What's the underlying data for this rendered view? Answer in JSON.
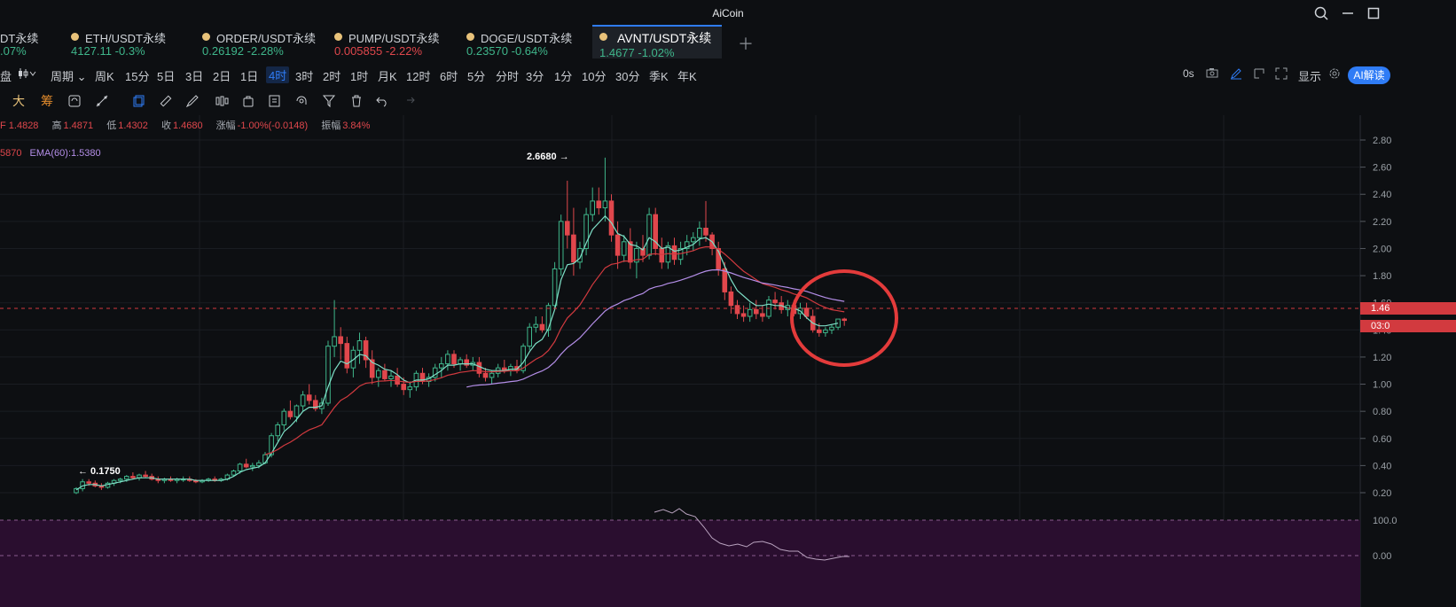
{
  "app": {
    "title": "AiCoin"
  },
  "window_controls": [
    "search-icon",
    "minimize-icon",
    "maximize-icon"
  ],
  "tabs": [
    {
      "symbol": "DT永续",
      "price": "",
      "change": ".07%",
      "dir": "up"
    },
    {
      "symbol": "ETH/USDT永续",
      "price": "4127.11",
      "change": "-0.3%",
      "dir": "up"
    },
    {
      "symbol": "ORDER/USDT永续",
      "price": "0.26192",
      "change": "-2.28%",
      "dir": "up"
    },
    {
      "symbol": "PUMP/USDT永续",
      "price": "0.005855",
      "change": "-2.22%",
      "dir": "down"
    },
    {
      "symbol": "DOGE/USDT永续",
      "price": "0.23570",
      "change": "-0.64%",
      "dir": "up"
    },
    {
      "symbol": "AVNT/USDT永续",
      "price": "1.4677",
      "change": "-1.02%",
      "dir": "up",
      "active": true
    }
  ],
  "toolbar": {
    "left_char": "盘",
    "period_label": "周期",
    "intervals": [
      "周K",
      "15分",
      "5日",
      "3日",
      "2日",
      "1日",
      "4时",
      "3时",
      "2时",
      "1时",
      "月K",
      "12时",
      "6时",
      "5分",
      "分时",
      "3分",
      "1分",
      "10分",
      "30分",
      "季K",
      "年K"
    ],
    "selected_interval": "4时",
    "countdown": "0s",
    "display_label": "显示",
    "ai_label": "AI解读"
  },
  "draw_tools": {
    "char1": "大",
    "char2": "筹"
  },
  "ohlc": {
    "open_label": "开",
    "open": "1.4828",
    "high_label": "高",
    "high": "1.4871",
    "low_label": "低",
    "low": "1.4302",
    "close_label": "收",
    "close": "1.4680",
    "change_label": "涨幅",
    "change": "-1.00%(-0.0148)",
    "amp_label": "振幅",
    "amp": "3.84%"
  },
  "ema": {
    "partial": "5870",
    "label": "EMA(60):1.5380"
  },
  "chart_data": {
    "type": "candlestick",
    "interval": "4时",
    "y_axis_ticks": [
      "2.80",
      "2.60",
      "2.40",
      "2.20",
      "2.00",
      "1.80",
      "1.60",
      "1.40",
      "1.20",
      "1.00",
      "0.80",
      "0.60",
      "0.40",
      "0.20"
    ],
    "ylim": [
      0.1,
      2.9
    ],
    "high_marker": "2.6680",
    "low_marker": "0.1750",
    "current_price": "1.46",
    "countdown_badge": "03:0",
    "indicator_ticks": [
      "100.0",
      "0.00"
    ],
    "candles": [
      [
        0.2,
        0.24,
        0.19,
        0.23
      ],
      [
        0.23,
        0.3,
        0.21,
        0.28
      ],
      [
        0.28,
        0.3,
        0.25,
        0.27
      ],
      [
        0.27,
        0.29,
        0.24,
        0.25
      ],
      [
        0.25,
        0.27,
        0.22,
        0.24
      ],
      [
        0.24,
        0.28,
        0.23,
        0.27
      ],
      [
        0.27,
        0.3,
        0.25,
        0.29
      ],
      [
        0.29,
        0.31,
        0.27,
        0.3
      ],
      [
        0.3,
        0.33,
        0.28,
        0.32
      ],
      [
        0.32,
        0.35,
        0.3,
        0.31
      ],
      [
        0.31,
        0.34,
        0.29,
        0.33
      ],
      [
        0.33,
        0.36,
        0.31,
        0.32
      ],
      [
        0.32,
        0.34,
        0.29,
        0.3
      ],
      [
        0.3,
        0.32,
        0.27,
        0.29
      ],
      [
        0.29,
        0.31,
        0.27,
        0.3
      ],
      [
        0.3,
        0.32,
        0.28,
        0.29
      ],
      [
        0.29,
        0.31,
        0.27,
        0.3
      ],
      [
        0.3,
        0.32,
        0.28,
        0.3
      ],
      [
        0.3,
        0.32,
        0.28,
        0.29
      ],
      [
        0.29,
        0.3,
        0.27,
        0.28
      ],
      [
        0.28,
        0.3,
        0.27,
        0.29
      ],
      [
        0.29,
        0.31,
        0.28,
        0.3
      ],
      [
        0.3,
        0.32,
        0.28,
        0.29
      ],
      [
        0.29,
        0.31,
        0.28,
        0.3
      ],
      [
        0.3,
        0.34,
        0.29,
        0.33
      ],
      [
        0.33,
        0.37,
        0.32,
        0.36
      ],
      [
        0.36,
        0.42,
        0.34,
        0.41
      ],
      [
        0.41,
        0.45,
        0.38,
        0.39
      ],
      [
        0.39,
        0.42,
        0.36,
        0.4
      ],
      [
        0.4,
        0.44,
        0.38,
        0.42
      ],
      [
        0.42,
        0.5,
        0.41,
        0.48
      ],
      [
        0.48,
        0.64,
        0.46,
        0.62
      ],
      [
        0.62,
        0.72,
        0.58,
        0.7
      ],
      [
        0.7,
        0.82,
        0.66,
        0.8
      ],
      [
        0.8,
        0.88,
        0.74,
        0.76
      ],
      [
        0.76,
        0.85,
        0.72,
        0.84
      ],
      [
        0.84,
        0.95,
        0.8,
        0.92
      ],
      [
        0.92,
        1.0,
        0.85,
        0.88
      ],
      [
        0.88,
        0.92,
        0.8,
        0.82
      ],
      [
        0.82,
        0.9,
        0.78,
        0.86
      ],
      [
        0.86,
        1.32,
        0.84,
        1.28
      ],
      [
        1.28,
        1.62,
        1.2,
        1.35
      ],
      [
        1.35,
        1.42,
        1.18,
        1.3
      ],
      [
        1.3,
        1.35,
        1.08,
        1.12
      ],
      [
        1.12,
        1.28,
        1.05,
        1.25
      ],
      [
        1.25,
        1.38,
        1.15,
        1.32
      ],
      [
        1.32,
        1.35,
        1.12,
        1.18
      ],
      [
        1.18,
        1.25,
        1.0,
        1.05
      ],
      [
        1.05,
        1.12,
        0.98,
        1.1
      ],
      [
        1.1,
        1.15,
        1.02,
        1.04
      ],
      [
        1.04,
        1.1,
        0.98,
        1.06
      ],
      [
        1.06,
        1.12,
        0.98,
        1.0
      ],
      [
        1.0,
        1.05,
        0.92,
        0.96
      ],
      [
        0.96,
        1.02,
        0.9,
        0.98
      ],
      [
        0.98,
        1.1,
        0.95,
        1.08
      ],
      [
        1.08,
        1.12,
        1.0,
        1.02
      ],
      [
        1.02,
        1.08,
        0.98,
        1.05
      ],
      [
        1.05,
        1.15,
        1.02,
        1.12
      ],
      [
        1.12,
        1.2,
        1.05,
        1.15
      ],
      [
        1.15,
        1.25,
        1.1,
        1.22
      ],
      [
        1.22,
        1.25,
        1.12,
        1.15
      ],
      [
        1.15,
        1.2,
        1.1,
        1.18
      ],
      [
        1.18,
        1.22,
        1.12,
        1.14
      ],
      [
        1.14,
        1.2,
        1.1,
        1.16
      ],
      [
        1.16,
        1.2,
        1.05,
        1.08
      ],
      [
        1.08,
        1.12,
        1.02,
        1.05
      ],
      [
        1.05,
        1.1,
        1.0,
        1.08
      ],
      [
        1.08,
        1.15,
        1.05,
        1.12
      ],
      [
        1.12,
        1.18,
        1.08,
        1.1
      ],
      [
        1.1,
        1.15,
        1.06,
        1.13
      ],
      [
        1.13,
        1.18,
        1.08,
        1.1
      ],
      [
        1.1,
        1.3,
        1.08,
        1.28
      ],
      [
        1.28,
        1.45,
        1.25,
        1.42
      ],
      [
        1.42,
        1.5,
        1.38,
        1.44
      ],
      [
        1.44,
        1.5,
        1.38,
        1.4
      ],
      [
        1.4,
        1.6,
        1.35,
        1.58
      ],
      [
        1.58,
        1.9,
        1.55,
        1.85
      ],
      [
        1.85,
        2.25,
        1.8,
        2.2
      ],
      [
        2.2,
        2.5,
        2.0,
        2.1
      ],
      [
        2.1,
        2.3,
        1.8,
        1.9
      ],
      [
        1.9,
        2.05,
        1.85,
        2.0
      ],
      [
        2.0,
        2.3,
        1.95,
        2.25
      ],
      [
        2.25,
        2.45,
        2.2,
        2.35
      ],
      [
        2.35,
        2.45,
        2.25,
        2.3
      ],
      [
        2.3,
        2.67,
        2.2,
        2.35
      ],
      [
        2.35,
        2.4,
        2.05,
        2.1
      ],
      [
        2.1,
        2.2,
        1.85,
        1.95
      ],
      [
        1.95,
        2.1,
        1.9,
        2.05
      ],
      [
        2.05,
        2.15,
        1.85,
        1.9
      ],
      [
        1.9,
        2.05,
        1.78,
        2.0
      ],
      [
        2.0,
        2.1,
        1.9,
        1.95
      ],
      [
        1.95,
        2.3,
        1.92,
        2.25
      ],
      [
        2.25,
        2.3,
        1.95,
        2.0
      ],
      [
        2.0,
        2.08,
        1.85,
        1.9
      ],
      [
        1.9,
        2.05,
        1.85,
        2.02
      ],
      [
        2.02,
        2.08,
        1.88,
        1.92
      ],
      [
        1.92,
        2.05,
        1.88,
        2.0
      ],
      [
        2.0,
        2.1,
        1.95,
        2.05
      ],
      [
        2.05,
        2.12,
        1.98,
        2.08
      ],
      [
        2.08,
        2.2,
        2.02,
        2.15
      ],
      [
        2.15,
        2.35,
        2.05,
        2.1
      ],
      [
        2.1,
        2.12,
        1.95,
        2.0
      ],
      [
        2.0,
        2.05,
        1.8,
        1.85
      ],
      [
        1.85,
        1.9,
        1.62,
        1.68
      ],
      [
        1.68,
        1.72,
        1.52,
        1.58
      ],
      [
        1.58,
        1.62,
        1.48,
        1.52
      ],
      [
        1.52,
        1.58,
        1.46,
        1.5
      ],
      [
        1.5,
        1.6,
        1.46,
        1.55
      ],
      [
        1.55,
        1.62,
        1.48,
        1.52
      ],
      [
        1.52,
        1.58,
        1.46,
        1.5
      ],
      [
        1.5,
        1.65,
        1.48,
        1.62
      ],
      [
        1.62,
        1.68,
        1.55,
        1.6
      ],
      [
        1.6,
        1.65,
        1.52,
        1.55
      ],
      [
        1.55,
        1.62,
        1.5,
        1.58
      ],
      [
        1.58,
        1.62,
        1.5,
        1.52
      ],
      [
        1.52,
        1.6,
        1.48,
        1.56
      ],
      [
        1.56,
        1.6,
        1.48,
        1.5
      ],
      [
        1.5,
        1.55,
        1.38,
        1.4
      ],
      [
        1.4,
        1.45,
        1.35,
        1.38
      ],
      [
        1.38,
        1.42,
        1.35,
        1.4
      ],
      [
        1.4,
        1.44,
        1.37,
        1.42
      ],
      [
        1.42,
        1.48,
        1.4,
        1.48
      ],
      [
        1.48,
        1.49,
        1.43,
        1.47
      ]
    ],
    "ema_short": [
      0.22,
      0.25,
      0.26,
      0.26,
      0.25,
      0.26,
      0.27,
      0.28,
      0.29,
      0.3,
      0.31,
      0.31,
      0.31,
      0.3,
      0.3,
      0.3,
      0.3,
      0.3,
      0.3,
      0.29,
      0.29,
      0.29,
      0.29,
      0.29,
      0.3,
      0.32,
      0.35,
      0.37,
      0.38,
      0.39,
      0.42,
      0.49,
      0.57,
      0.65,
      0.69,
      0.74,
      0.8,
      0.83,
      0.83,
      0.84,
      0.98,
      1.1,
      1.17,
      1.15,
      1.18,
      1.22,
      1.21,
      1.16,
      1.14,
      1.11,
      1.1,
      1.07,
      1.03,
      1.01,
      1.03,
      1.03,
      1.04,
      1.07,
      1.1,
      1.14,
      1.14,
      1.15,
      1.15,
      1.15,
      1.13,
      1.11,
      1.1,
      1.1,
      1.1,
      1.11,
      1.11,
      1.16,
      1.24,
      1.3,
      1.33,
      1.41,
      1.55,
      1.77,
      1.88,
      1.89,
      1.93,
      2.04,
      2.14,
      2.19,
      2.24,
      2.19,
      2.11,
      2.09,
      2.03,
      2.02,
      1.99,
      2.08,
      2.05,
      2.0,
      2.01,
      1.98,
      1.99,
      2.01,
      2.03,
      2.07,
      2.08,
      2.05,
      1.98,
      1.87,
      1.77,
      1.69,
      1.65,
      1.61,
      1.58,
      1.58,
      1.59,
      1.58,
      1.58,
      1.56,
      1.56,
      1.54,
      1.49,
      1.45,
      1.43,
      1.43,
      1.44,
      1.45
    ]
  }
}
